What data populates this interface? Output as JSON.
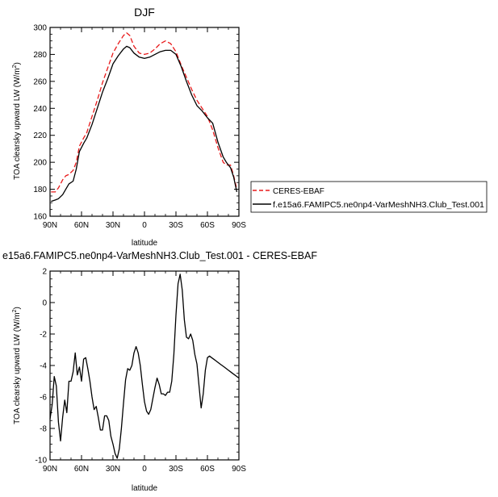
{
  "chart_data": [
    {
      "type": "line",
      "title": "DJF",
      "xlabel": "latitude",
      "ylabel": "TOA clearsky upward LW (W/m",
      "ylabel_sup": "2",
      "ylabel_end": ")",
      "xlim": [
        -90,
        90
      ],
      "ylim": [
        160,
        300
      ],
      "xticks": [
        -90,
        -60,
        -30,
        0,
        30,
        60,
        90
      ],
      "xtick_labels": [
        "90N",
        "60N",
        "30N",
        "0",
        "30S",
        "60S",
        "90S"
      ],
      "yticks": [
        160,
        180,
        200,
        220,
        240,
        260,
        280,
        300
      ],
      "ytick_labels": [
        "160",
        "180",
        "200",
        "220",
        "240",
        "260",
        "280",
        "300"
      ],
      "legend": "right",
      "series": [
        {
          "name": "CERES-EBAF",
          "color": "#e8191a",
          "dash": "dashed",
          "x": [
            -89,
            -85,
            -82,
            -78,
            -75,
            -72,
            -68,
            -65,
            -62,
            -58,
            -55,
            -50,
            -45,
            -40,
            -35,
            -30,
            -25,
            -20,
            -17,
            -14,
            -10,
            -5,
            0,
            5,
            10,
            15,
            20,
            25,
            30,
            35,
            40,
            45,
            50,
            55,
            60,
            65,
            70,
            75,
            78,
            82,
            85,
            88
          ],
          "y": [
            178,
            178,
            181,
            187,
            190,
            191,
            194,
            200,
            212,
            218,
            222,
            234,
            246,
            259,
            270,
            281,
            288,
            294,
            296,
            294,
            286,
            281,
            280,
            281,
            284,
            288,
            290,
            288,
            282,
            272,
            263,
            254,
            246,
            240,
            234,
            224,
            211,
            200,
            198,
            198,
            190,
            180
          ]
        },
        {
          "name": "f.e15a6.FAMIPC5.ne0np4-VarMeshNH3.Club_Test.001",
          "color": "#000000",
          "dash": "solid",
          "x": [
            -89,
            -85,
            -82,
            -78,
            -75,
            -72,
            -68,
            -65,
            -62,
            -58,
            -55,
            -50,
            -45,
            -40,
            -35,
            -30,
            -25,
            -20,
            -17,
            -14,
            -10,
            -5,
            0,
            5,
            10,
            15,
            20,
            25,
            30,
            35,
            40,
            45,
            50,
            55,
            60,
            65,
            70,
            75,
            78,
            82,
            85,
            88
          ],
          "y": [
            171,
            172,
            173,
            176,
            180,
            184,
            186,
            195,
            208,
            214,
            218,
            228,
            240,
            252,
            262,
            273,
            279,
            284,
            286,
            285,
            281,
            278,
            277,
            278,
            280,
            282,
            283,
            283,
            280,
            271,
            260,
            250,
            242,
            238,
            233,
            229,
            215,
            204,
            200,
            196,
            189,
            178
          ]
        }
      ]
    },
    {
      "type": "line",
      "title": "e15a6.FAMIPC5.ne0np4-VarMeshNH3.Club_Test.001 - CERES-EBAF",
      "xlabel": "latitude",
      "ylabel": "TOA clearsky upward LW (W/m",
      "ylabel_sup": "2",
      "ylabel_end": ")",
      "xlim": [
        -90,
        90
      ],
      "ylim": [
        -10,
        2
      ],
      "xticks": [
        -90,
        -60,
        -30,
        0,
        30,
        60,
        90
      ],
      "xtick_labels": [
        "90N",
        "60N",
        "30N",
        "0",
        "30S",
        "60S",
        "90S"
      ],
      "yticks": [
        -10,
        -8,
        -6,
        -4,
        -2,
        0,
        2
      ],
      "ytick_labels": [
        "-10",
        "-8",
        "-6",
        "-4",
        "-2",
        "0",
        "2"
      ],
      "series": [
        {
          "color": "#000000",
          "dash": "solid",
          "x": [
            -90,
            -88,
            -86,
            -84,
            -82,
            -80,
            -78,
            -76,
            -74,
            -72,
            -70,
            -68,
            -66,
            -64,
            -62,
            -60,
            -58,
            -56,
            -54,
            -52,
            -50,
            -48,
            -46,
            -44,
            -42,
            -40,
            -38,
            -36,
            -34,
            -32,
            -30,
            -28,
            -26,
            -24,
            -22,
            -20,
            -18,
            -16,
            -14,
            -12,
            -10,
            -8,
            -6,
            -4,
            -2,
            0,
            2,
            4,
            6,
            8,
            10,
            12,
            14,
            16,
            18,
            20,
            22,
            24,
            26,
            28,
            30,
            32,
            34,
            36,
            38,
            40,
            42,
            44,
            46,
            48,
            50,
            52,
            54,
            56,
            58,
            60,
            62,
            64,
            66,
            68,
            70,
            72,
            74,
            76,
            78,
            80,
            82,
            84,
            86,
            88,
            90
          ],
          "y": [
            -7.4,
            -6.5,
            -4.7,
            -5.3,
            -7.6,
            -8.8,
            -7.3,
            -6.2,
            -7.0,
            -5.0,
            -5.0,
            -4.4,
            -3.2,
            -4.6,
            -4.1,
            -5.0,
            -3.6,
            -3.5,
            -4.2,
            -5.0,
            -6.0,
            -6.8,
            -6.6,
            -7.3,
            -8.1,
            -8.1,
            -7.2,
            -7.2,
            -7.5,
            -8.5,
            -9.0,
            -9.6,
            -9.9,
            -9.3,
            -8.0,
            -6.4,
            -4.9,
            -4.2,
            -4.3,
            -4.0,
            -3.2,
            -2.8,
            -3.2,
            -4.0,
            -5.2,
            -6.3,
            -6.9,
            -7.1,
            -6.8,
            -6.1,
            -5.4,
            -4.8,
            -5.2,
            -5.8,
            -5.8,
            -5.9,
            -5.7,
            -5.7,
            -5.0,
            -3.3,
            -0.8,
            1.2,
            1.8,
            0.8,
            -1.1,
            -2.2,
            -2.3,
            -2.0,
            -2.4,
            -3.3,
            -3.9,
            -5.3,
            -6.7,
            -5.8,
            -4.3,
            -3.5,
            -3.4,
            -3.5,
            -3.6,
            -3.7,
            -3.8,
            -3.9,
            -4.0,
            -4.1,
            -4.2,
            -4.3,
            -4.4,
            -4.5,
            -4.6,
            -4.7,
            -4.8
          ]
        }
      ]
    }
  ]
}
